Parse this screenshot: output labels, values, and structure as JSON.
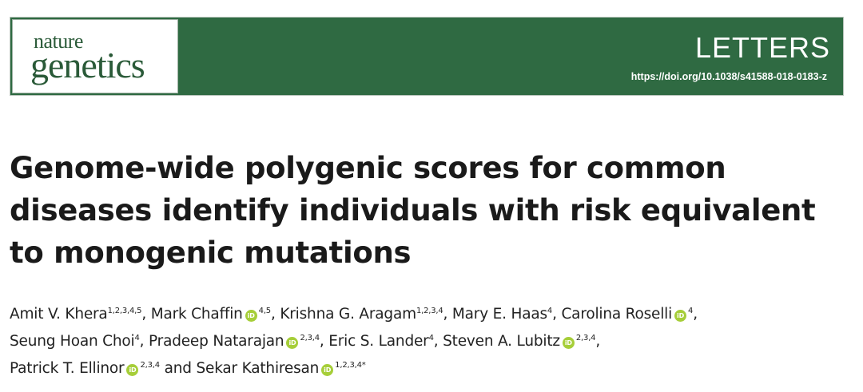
{
  "header": {
    "logo": {
      "line1": "nature",
      "line2": "genetics"
    },
    "section_label": "LETTERS",
    "doi": "https://doi.org/10.1038/s41588-018-0183-z"
  },
  "article": {
    "title_lines": [
      "Genome-wide polygenic scores for common",
      "diseases identify individuals with risk equivalent",
      "to monogenic mutations"
    ],
    "orcid_glyph": "iD",
    "authors": [
      {
        "name": "Amit V. Khera",
        "affil": "1,2,3,4,5",
        "orcid": false,
        "sep": ", "
      },
      {
        "name": "Mark Chaffin",
        "affil": "4,5",
        "orcid": true,
        "sep": ", "
      },
      {
        "name": "Krishna G. Aragam",
        "affil": "1,2,3,4",
        "orcid": false,
        "sep": ", "
      },
      {
        "name": "Mary E. Haas",
        "affil": "4",
        "orcid": false,
        "sep": ", "
      },
      {
        "name": "Carolina Roselli",
        "affil": "4",
        "orcid": true,
        "sep": ", "
      },
      {
        "name": "Seung Hoan Choi",
        "affil": "4",
        "orcid": false,
        "sep": ", "
      },
      {
        "name": "Pradeep Natarajan",
        "affil": "2,3,4",
        "orcid": true,
        "sep": ", "
      },
      {
        "name": "Eric S. Lander",
        "affil": "4",
        "orcid": false,
        "sep": ", "
      },
      {
        "name": "Steven A. Lubitz",
        "affil": "2,3,4",
        "orcid": true,
        "sep": ", "
      },
      {
        "name": "Patrick T. Ellinor",
        "affil": "2,3,4",
        "orcid": true,
        "sep": " and "
      },
      {
        "name": "Sekar Kathiresan",
        "affil": "1,2,3,4*",
        "orcid": true,
        "sep": ""
      }
    ]
  },
  "colors": {
    "banner_green": "#2f6a42",
    "orcid_green": "#a6ce39",
    "logo_text": "#2a5a38"
  }
}
